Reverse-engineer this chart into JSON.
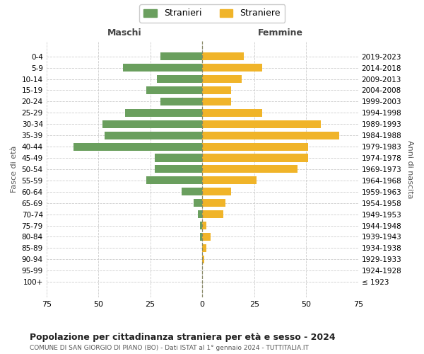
{
  "age_groups": [
    "100+",
    "95-99",
    "90-94",
    "85-89",
    "80-84",
    "75-79",
    "70-74",
    "65-69",
    "60-64",
    "55-59",
    "50-54",
    "45-49",
    "40-44",
    "35-39",
    "30-34",
    "25-29",
    "20-24",
    "15-19",
    "10-14",
    "5-9",
    "0-4"
  ],
  "birth_years": [
    "≤ 1923",
    "1924-1928",
    "1929-1933",
    "1934-1938",
    "1939-1943",
    "1944-1948",
    "1949-1953",
    "1954-1958",
    "1959-1963",
    "1964-1968",
    "1969-1973",
    "1974-1978",
    "1979-1983",
    "1984-1988",
    "1989-1993",
    "1994-1998",
    "1999-2003",
    "2004-2008",
    "2009-2013",
    "2014-2018",
    "2019-2023"
  ],
  "maschi": [
    0,
    0,
    0,
    0,
    1,
    1,
    2,
    4,
    10,
    27,
    23,
    23,
    62,
    47,
    48,
    37,
    20,
    27,
    22,
    38,
    20
  ],
  "femmine": [
    0,
    0,
    1,
    2,
    4,
    2,
    10,
    11,
    14,
    26,
    46,
    51,
    51,
    66,
    57,
    29,
    14,
    14,
    19,
    29,
    20
  ],
  "color_maschi": "#6a9f5e",
  "color_femmine": "#f0b429",
  "title": "Popolazione per cittadinanza straniera per età e sesso - 2024",
  "subtitle": "COMUNE DI SAN GIORGIO DI PIANO (BO) - Dati ISTAT al 1° gennaio 2024 - TUTTITALIA.IT",
  "xlabel_left": "Maschi",
  "xlabel_right": "Femmine",
  "ylabel_left": "Fasce di età",
  "ylabel_right": "Anni di nascita",
  "xlim": 75,
  "legend_stranieri": "Stranieri",
  "legend_straniere": "Straniere",
  "bg_color": "#ffffff",
  "grid_color": "#cccccc"
}
